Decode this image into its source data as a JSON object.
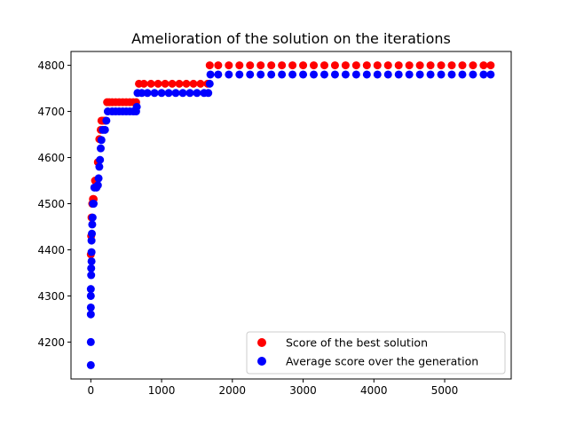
{
  "chart_data": {
    "type": "scatter",
    "title": "Amelioration of the solution on the iterations",
    "xlabel": "",
    "ylabel": "",
    "xlim": [
      -280,
      5940
    ],
    "ylim": [
      4120,
      4830
    ],
    "x_ticks": [
      0,
      1000,
      2000,
      3000,
      4000,
      5000
    ],
    "y_ticks": [
      4200,
      4300,
      4400,
      4500,
      4600,
      4700,
      4800
    ],
    "grid": false,
    "legend_position": "lower-right",
    "series": [
      {
        "name": "Score of the best solution",
        "color": "#ff0000",
        "points": [
          [
            0,
            4390
          ],
          [
            5,
            4430
          ],
          [
            10,
            4470
          ],
          [
            20,
            4500
          ],
          [
            30,
            4510
          ],
          [
            40,
            4510
          ],
          [
            60,
            4550
          ],
          [
            80,
            4550
          ],
          [
            100,
            4590
          ],
          [
            120,
            4640
          ],
          [
            140,
            4660
          ],
          [
            150,
            4680
          ],
          [
            170,
            4680
          ],
          [
            200,
            4680
          ],
          [
            230,
            4720
          ],
          [
            260,
            4720
          ],
          [
            300,
            4720
          ],
          [
            350,
            4720
          ],
          [
            400,
            4720
          ],
          [
            450,
            4720
          ],
          [
            500,
            4720
          ],
          [
            550,
            4720
          ],
          [
            600,
            4720
          ],
          [
            640,
            4720
          ],
          [
            680,
            4760
          ],
          [
            750,
            4760
          ],
          [
            850,
            4760
          ],
          [
            950,
            4760
          ],
          [
            1050,
            4760
          ],
          [
            1150,
            4760
          ],
          [
            1250,
            4760
          ],
          [
            1350,
            4760
          ],
          [
            1450,
            4760
          ],
          [
            1550,
            4760
          ],
          [
            1650,
            4760
          ],
          [
            1680,
            4800
          ],
          [
            1800,
            4800
          ],
          [
            1950,
            4800
          ],
          [
            2100,
            4800
          ],
          [
            2250,
            4800
          ],
          [
            2400,
            4800
          ],
          [
            2550,
            4800
          ],
          [
            2700,
            4800
          ],
          [
            2850,
            4800
          ],
          [
            3000,
            4800
          ],
          [
            3150,
            4800
          ],
          [
            3300,
            4800
          ],
          [
            3450,
            4800
          ],
          [
            3600,
            4800
          ],
          [
            3750,
            4800
          ],
          [
            3900,
            4800
          ],
          [
            4050,
            4800
          ],
          [
            4200,
            4800
          ],
          [
            4350,
            4800
          ],
          [
            4500,
            4800
          ],
          [
            4650,
            4800
          ],
          [
            4800,
            4800
          ],
          [
            4950,
            4800
          ],
          [
            5100,
            4800
          ],
          [
            5250,
            4800
          ],
          [
            5400,
            4800
          ],
          [
            5550,
            4800
          ],
          [
            5650,
            4800
          ]
        ]
      },
      {
        "name": "Average score over the generation",
        "color": "#0000ff",
        "points": [
          [
            0,
            4150
          ],
          [
            0,
            4200
          ],
          [
            0,
            4260
          ],
          [
            0,
            4275
          ],
          [
            0,
            4300
          ],
          [
            0,
            4315
          ],
          [
            5,
            4345
          ],
          [
            5,
            4360
          ],
          [
            10,
            4375
          ],
          [
            10,
            4395
          ],
          [
            10,
            4420
          ],
          [
            15,
            4435
          ],
          [
            20,
            4455
          ],
          [
            25,
            4470
          ],
          [
            30,
            4500
          ],
          [
            40,
            4500
          ],
          [
            50,
            4535
          ],
          [
            80,
            4535
          ],
          [
            100,
            4540
          ],
          [
            110,
            4555
          ],
          [
            120,
            4580
          ],
          [
            130,
            4595
          ],
          [
            140,
            4620
          ],
          [
            150,
            4638
          ],
          [
            170,
            4660
          ],
          [
            200,
            4660
          ],
          [
            220,
            4680
          ],
          [
            240,
            4700
          ],
          [
            300,
            4700
          ],
          [
            350,
            4700
          ],
          [
            400,
            4700
          ],
          [
            450,
            4700
          ],
          [
            500,
            4700
          ],
          [
            550,
            4700
          ],
          [
            600,
            4700
          ],
          [
            640,
            4700
          ],
          [
            650,
            4710
          ],
          [
            660,
            4740
          ],
          [
            720,
            4740
          ],
          [
            800,
            4740
          ],
          [
            900,
            4740
          ],
          [
            1000,
            4740
          ],
          [
            1100,
            4740
          ],
          [
            1200,
            4740
          ],
          [
            1300,
            4740
          ],
          [
            1400,
            4740
          ],
          [
            1500,
            4740
          ],
          [
            1600,
            4740
          ],
          [
            1660,
            4740
          ],
          [
            1680,
            4760
          ],
          [
            1690,
            4780
          ],
          [
            1800,
            4780
          ],
          [
            1950,
            4780
          ],
          [
            2100,
            4780
          ],
          [
            2250,
            4780
          ],
          [
            2400,
            4780
          ],
          [
            2550,
            4780
          ],
          [
            2700,
            4780
          ],
          [
            2850,
            4780
          ],
          [
            3000,
            4780
          ],
          [
            3150,
            4780
          ],
          [
            3300,
            4780
          ],
          [
            3450,
            4780
          ],
          [
            3600,
            4780
          ],
          [
            3750,
            4780
          ],
          [
            3900,
            4780
          ],
          [
            4050,
            4780
          ],
          [
            4200,
            4780
          ],
          [
            4350,
            4780
          ],
          [
            4500,
            4780
          ],
          [
            4650,
            4780
          ],
          [
            4800,
            4780
          ],
          [
            4950,
            4780
          ],
          [
            5100,
            4780
          ],
          [
            5250,
            4780
          ],
          [
            5400,
            4780
          ],
          [
            5550,
            4780
          ],
          [
            5650,
            4780
          ]
        ]
      }
    ]
  }
}
